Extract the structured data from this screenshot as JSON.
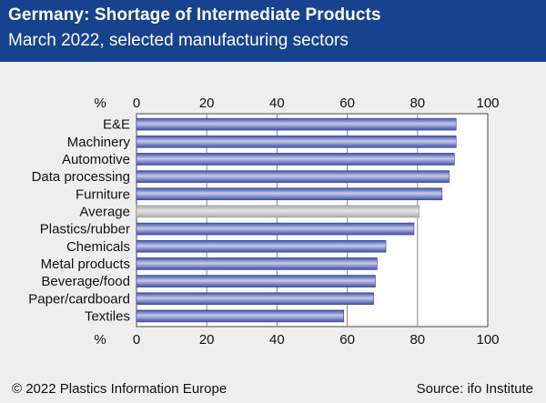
{
  "header": {
    "title": "Germany: Shortage of Intermediate Products",
    "subtitle": "March 2022, selected manufacturing sectors"
  },
  "footer": {
    "copyright": "© 2022 Plastics Information Europe",
    "source": "Source: ifo Institute"
  },
  "colors": {
    "header_bg": "#17428d",
    "bar": "#3d4fa8",
    "bar_highlight": "#c7cbe9",
    "average_bar": "#b9b9b9",
    "background": "#eeeeee"
  },
  "chart_data": {
    "type": "bar",
    "orientation": "horizontal",
    "axis_unit_label": "%",
    "xlim": [
      0,
      100
    ],
    "ticks": [
      0,
      20,
      40,
      60,
      80,
      100
    ],
    "grid": true,
    "categories": [
      "E&E",
      "Machinery",
      "Automotive",
      "Data processing",
      "Furniture",
      "Average",
      "Plastics/rubber",
      "Chemicals",
      "Metal products",
      "Beverage/food",
      "Paper/cardboard",
      "Textiles"
    ],
    "values": [
      91,
      91,
      90.5,
      89,
      87,
      80.5,
      79,
      71,
      68.5,
      68,
      67.5,
      59
    ],
    "highlight_category": "Average"
  }
}
